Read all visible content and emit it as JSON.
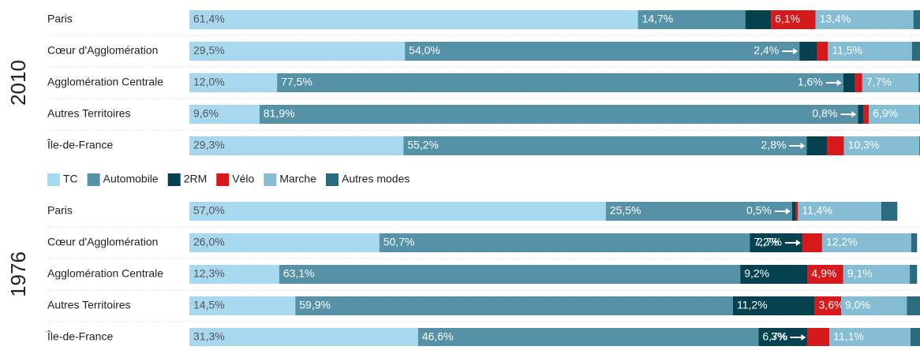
{
  "chart_data": [
    {
      "type": "bar",
      "title": "2010",
      "xlim": [
        0,
        100
      ],
      "categories": [
        "Paris",
        "Cœur d'Agglomération",
        "Agglomération Centrale",
        "Autres Territoires",
        "Île-de-France"
      ],
      "series": [
        {
          "name": "TC",
          "color": "#a8d8ee",
          "values": [
            61.4,
            29.5,
            12.0,
            9.6,
            29.3
          ],
          "value_labels": [
            "61,4%",
            "29,5%",
            "12,0%",
            "9,6%",
            "29,3%"
          ]
        },
        {
          "name": "Automobile",
          "color": "#5592a8",
          "values": [
            14.7,
            54.0,
            77.5,
            81.9,
            55.2
          ],
          "value_labels": [
            "14,7%",
            "54,0%",
            "77,5%",
            "81,9%",
            "55,2%"
          ]
        },
        {
          "name": "2RM",
          "color": "#06414f",
          "values": [
            3.5,
            2.4,
            1.6,
            0.8,
            2.8
          ],
          "value_labels": [
            null,
            "2,4%",
            "1,6%",
            "0,8%",
            "2,8%"
          ]
        },
        {
          "name": "Vélo",
          "color": "#d7191c",
          "values": [
            6.1,
            1.5,
            1.0,
            0.7,
            2.3
          ],
          "value_labels": [
            "6,1%",
            null,
            null,
            null,
            null
          ]
        },
        {
          "name": "Marche",
          "color": "#85bdd4",
          "values": [
            13.4,
            11.5,
            7.7,
            6.9,
            10.3
          ],
          "value_labels": [
            "13,4%",
            "11,5%",
            "7,7%",
            "6,9%",
            "10,3%"
          ]
        },
        {
          "name": "Autres modes",
          "color": "#2b6b80",
          "values": [
            0.9,
            1.1,
            0.2,
            0.1,
            0.1
          ],
          "value_labels": [
            null,
            null,
            null,
            null,
            null
          ]
        }
      ]
    },
    {
      "type": "bar",
      "title": "1976",
      "xlim": [
        0,
        100
      ],
      "categories": [
        "Paris",
        "Cœur d'Agglomération",
        "Agglomération Centrale",
        "Autres Territoires",
        "Île-de-France"
      ],
      "series": [
        {
          "name": "TC",
          "color": "#a8d8ee",
          "values": [
            57.0,
            26.0,
            12.3,
            14.5,
            31.3
          ],
          "value_labels": [
            "57,0%",
            "26,0%",
            "12,3%",
            "14,5%",
            "31,3%"
          ]
        },
        {
          "name": "Automobile",
          "color": "#5592a8",
          "values": [
            25.5,
            50.7,
            63.1,
            59.9,
            46.6
          ],
          "value_labels": [
            "25,5%",
            "50,7%",
            "63,1%",
            "59,9%",
            "46,6%"
          ]
        },
        {
          "name": "2RM",
          "color": "#06414f",
          "values": [
            0.5,
            7.2,
            9.2,
            11.2,
            6.7
          ],
          "value_labels": [
            "0,5%",
            "7,2%",
            "9,2%",
            "11,2%",
            "6,7%"
          ]
        },
        {
          "name": "Vélo",
          "color": "#d7191c",
          "values": [
            0.3,
            2.7,
            4.9,
            3.6,
            3.0
          ],
          "value_labels": [
            null,
            "2,7%",
            "4,9%",
            "3,6%",
            "3%"
          ]
        },
        {
          "name": "Marche",
          "color": "#85bdd4",
          "values": [
            11.4,
            12.2,
            9.1,
            9.0,
            11.1
          ],
          "value_labels": [
            "11,4%",
            "12,2%",
            "9,1%",
            "9,0%",
            "11,1%"
          ]
        },
        {
          "name": "Autres modes",
          "color": "#2b6b80",
          "values": [
            2.2,
            0.8,
            1.0,
            1.8,
            1.3
          ],
          "value_labels": [
            null,
            null,
            null,
            null,
            null
          ]
        }
      ]
    }
  ]
}
